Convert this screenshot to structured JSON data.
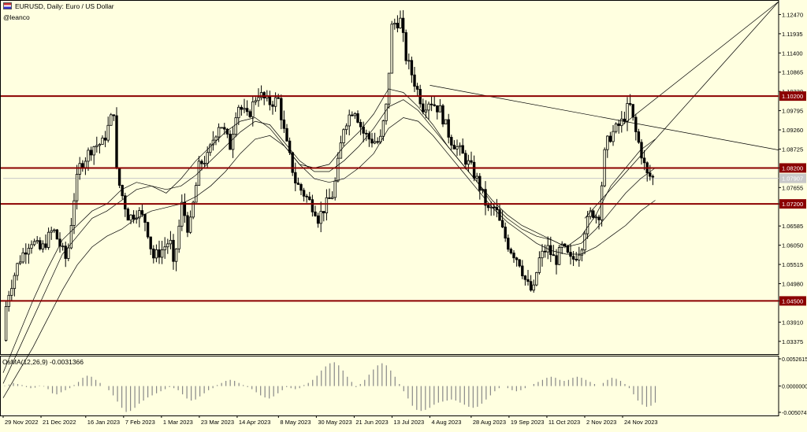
{
  "header": {
    "symbol_line": "EURUSD, Daily:  Euro / US Dollar",
    "author": "@leanco"
  },
  "osma": {
    "label": "OsMA(12,26,9) -0.0031366"
  },
  "colors": {
    "background": "#ffffe0",
    "candle": "#000000",
    "level_line": "#8b0000",
    "level_tag": "#8b0000",
    "ma_line": "#000000",
    "current_price": "#c8c8c8"
  },
  "chart_data": [
    {
      "type": "candlestick",
      "title": "EURUSD, Daily:  Euro / US Dollar",
      "symbol": "EURUSD",
      "timeframe": "Daily",
      "x_ticks": [
        "29 Nov 2022",
        "21 Dec 2022",
        "16 Jan 2023",
        "7 Feb 2023",
        "1 Mar 2023",
        "23 Mar 2023",
        "14 Apr 2023",
        "8 May 2023",
        "30 May 2023",
        "21 Jun 2023",
        "13 Jul 2023",
        "4 Aug 2023",
        "28 Aug 2023",
        "19 Sep 2023",
        "11 Oct 2023",
        "2 Nov 2023",
        "24 Nov 2023"
      ],
      "y_ticks": [
        "1.12470",
        "1.11935",
        "1.11400",
        "1.10865",
        "1.10330",
        "1.09795",
        "1.09260",
        "1.08725",
        "1.08200",
        "1.07655",
        "1.07200",
        "1.06585",
        "1.06050",
        "1.05515",
        "1.04980",
        "1.04500",
        "1.03910",
        "1.03375"
      ],
      "ylim": [
        1.0302,
        1.1283
      ],
      "horizontal_levels": [
        {
          "value": 1.102,
          "label": "1.10200"
        },
        {
          "value": 1.082,
          "label": "1.08200"
        },
        {
          "value": 1.072,
          "label": "1.07200"
        },
        {
          "value": 1.045,
          "label": "1.04500"
        }
      ],
      "current_price": {
        "value": 1.0791,
        "label": "1.07907"
      },
      "price_path": [
        [
          "29 Nov 2022",
          1.034
        ],
        [
          "1 Dec 2022",
          1.0455
        ],
        [
          "8 Dec 2022",
          1.056
        ],
        [
          "15 Dec 2022",
          1.062
        ],
        [
          "21 Dec 2022",
          1.059
        ],
        [
          "28 Dec 2022",
          1.065
        ],
        [
          "5 Jan 2023",
          1.056
        ],
        [
          "9 Jan 2023",
          1.073
        ],
        [
          "12 Jan 2023",
          1.082
        ],
        [
          "16 Jan 2023",
          1.085
        ],
        [
          "20 Jan 2023",
          1.088
        ],
        [
          "26 Jan 2023",
          1.089
        ],
        [
          "2 Feb 2023",
          1.099
        ],
        [
          "3 Feb 2023",
          1.08
        ],
        [
          "7 Feb 2023",
          1.073
        ],
        [
          "10 Feb 2023",
          1.068
        ],
        [
          "15 Feb 2023",
          1.07
        ],
        [
          "20 Feb 2023",
          1.067
        ],
        [
          "24 Feb 2023",
          1.057
        ],
        [
          "1 Mar 2023",
          1.059
        ],
        [
          "6 Mar 2023",
          1.062
        ],
        [
          "8 Mar 2023",
          1.054
        ],
        [
          "13 Mar 2023",
          1.072
        ],
        [
          "17 Mar 2023",
          1.064
        ],
        [
          "23 Mar 2023",
          1.083
        ],
        [
          "28 Mar 2023",
          1.085
        ],
        [
          "31 Mar 2023",
          1.09
        ],
        [
          "4 Apr 2023",
          1.095
        ],
        [
          "10 Apr 2023",
          1.088
        ],
        [
          "14 Apr 2023",
          1.1
        ],
        [
          "20 Apr 2023",
          1.096
        ],
        [
          "26 Apr 2023",
          1.103
        ],
        [
          "2 May 2023",
          1.1
        ],
        [
          "8 May 2023",
          1.101
        ],
        [
          "12 May 2023",
          1.09
        ],
        [
          "18 May 2023",
          1.078
        ],
        [
          "24 May 2023",
          1.074
        ],
        [
          "30 May 2023",
          1.07
        ],
        [
          "31 May 2023",
          1.068
        ],
        [
          "5 Jun 2023",
          1.072
        ],
        [
          "9 Jun 2023",
          1.075
        ],
        [
          "15 Jun 2023",
          1.094
        ],
        [
          "21 Jun 2023",
          1.099
        ],
        [
          "26 Jun 2023",
          1.092
        ],
        [
          "30 Jun 2023",
          1.09
        ],
        [
          "6 Jul 2023",
          1.089
        ],
        [
          "10 Jul 2023",
          1.1
        ],
        [
          "13 Jul 2023",
          1.122
        ],
        [
          "18 Jul 2023",
          1.123
        ],
        [
          "21 Jul 2023",
          1.113
        ],
        [
          "26 Jul 2023",
          1.106
        ],
        [
          "31 Jul 2023",
          1.099
        ],
        [
          "4 Aug 2023",
          1.101
        ],
        [
          "10 Aug 2023",
          1.098
        ],
        [
          "16 Aug 2023",
          1.09
        ],
        [
          "21 Aug 2023",
          1.087
        ],
        [
          "28 Aug 2023",
          1.082
        ],
        [
          "1 Sep 2023",
          1.078
        ],
        [
          "7 Sep 2023",
          1.07
        ],
        [
          "11 Sep 2023",
          1.071
        ],
        [
          "14 Sep 2023",
          1.066
        ],
        [
          "19 Sep 2023",
          1.06
        ],
        [
          "25 Sep 2023",
          1.056
        ],
        [
          "29 Sep 2023",
          1.05
        ],
        [
          "3 Oct 2023",
          1.047
        ],
        [
          "6 Oct 2023",
          1.056
        ],
        [
          "11 Oct 2023",
          1.06
        ],
        [
          "16 Oct 2023",
          1.056
        ],
        [
          "20 Oct 2023",
          1.06
        ],
        [
          "25 Oct 2023",
          1.056
        ],
        [
          "27 Oct 2023",
          1.057
        ],
        [
          "31 Oct 2023",
          1.06
        ],
        [
          "2 Nov 2023",
          1.065
        ],
        [
          "6 Nov 2023",
          1.07
        ],
        [
          "10 Nov 2023",
          1.068
        ],
        [
          "14 Nov 2023",
          1.088
        ],
        [
          "17 Nov 2023",
          1.091
        ],
        [
          "24 Nov 2023",
          1.095
        ],
        [
          "28 Nov 2023",
          1.1
        ],
        [
          "1 Dec 2023",
          1.093
        ],
        [
          "5 Dec 2023",
          1.086
        ],
        [
          "8 Dec 2023",
          1.08
        ],
        [
          "13 Dec 2023",
          1.0791
        ]
      ],
      "moving_averages": [
        {
          "values": [
            1.025,
            1.035,
            1.045,
            1.054,
            1.062,
            1.066,
            1.07,
            1.072,
            1.076,
            1.078,
            1.077,
            1.075,
            1.079,
            1.084,
            1.088,
            1.092,
            1.095,
            1.096,
            1.093,
            1.088,
            1.083,
            1.082,
            1.083,
            1.088,
            1.092,
            1.097,
            1.104,
            1.103,
            1.099,
            1.094,
            1.088,
            1.083,
            1.078,
            1.072,
            1.068,
            1.065,
            1.063,
            1.062,
            1.06,
            1.063,
            1.069,
            1.077,
            1.082,
            1.087,
            1.09
          ]
        },
        {
          "values": [
            1.022,
            1.031,
            1.04,
            1.049,
            1.058,
            1.063,
            1.068,
            1.07,
            1.073,
            1.076,
            1.077,
            1.076,
            1.077,
            1.08,
            1.084,
            1.088,
            1.092,
            1.095,
            1.094,
            1.089,
            1.084,
            1.081,
            1.081,
            1.084,
            1.088,
            1.093,
            1.099,
            1.101,
            1.098,
            1.093,
            1.088,
            1.083,
            1.078,
            1.073,
            1.069,
            1.066,
            1.064,
            1.062,
            1.06,
            1.061,
            1.065,
            1.07,
            1.075,
            1.079,
            1.082
          ]
        },
        {
          "values": [
            1.018,
            1.025,
            1.032,
            1.04,
            1.048,
            1.055,
            1.06,
            1.063,
            1.065,
            1.068,
            1.07,
            1.071,
            1.072,
            1.074,
            1.077,
            1.081,
            1.086,
            1.09,
            1.091,
            1.088,
            1.083,
            1.079,
            1.078,
            1.079,
            1.082,
            1.086,
            1.093,
            1.096,
            1.095,
            1.091,
            1.086,
            1.081,
            1.076,
            1.071,
            1.067,
            1.064,
            1.061,
            1.059,
            1.058,
            1.058,
            1.06,
            1.063,
            1.066,
            1.07,
            1.073
          ]
        }
      ],
      "trendlines": [
        {
          "from": [
            "4 Aug 2023",
            1.105
          ],
          "to": [
            "13 Dec 2023",
            1.087
          ]
        },
        {
          "from": [
            "2 Nov 2023",
            1.068
          ],
          "to": [
            "13 Dec 2023",
            1.1283
          ]
        },
        {
          "from": [
            "24 Nov 2023",
            1.094
          ],
          "to": [
            "13 Dec 2023",
            1.1283
          ]
        }
      ]
    },
    {
      "type": "bar",
      "title": "OsMA(12,26,9) -0.0031366",
      "y_ticks": [
        "0.0052615",
        "0.0000000",
        "-0.0050747"
      ],
      "ylim": [
        -0.0050747,
        0.0052615
      ],
      "histogram": [
        0.0001,
        0.0003,
        0.0006,
        0.0004,
        0.0002,
        -0.0002,
        -0.0004,
        -0.0003,
        0.0001,
        -0.0001,
        -0.0006,
        -0.0014,
        -0.0016,
        -0.0012,
        -0.0008,
        -0.0004,
        0.0002,
        0.0008,
        0.0016,
        0.002,
        0.0018,
        0.0012,
        0.0006,
        0.0,
        -0.0008,
        -0.0018,
        -0.003,
        -0.0042,
        -0.005,
        -0.0048,
        -0.0042,
        -0.0034,
        -0.0028,
        -0.0022,
        -0.0018,
        -0.0014,
        -0.001,
        -0.0006,
        -0.0002,
        -0.0004,
        -0.0008,
        -0.0016,
        -0.0024,
        -0.0028,
        -0.0026,
        -0.002,
        -0.0014,
        -0.0008,
        -0.0004,
        0.0002,
        0.0006,
        0.001,
        0.0012,
        0.001,
        0.0006,
        0.0002,
        -0.0002,
        -0.0006,
        -0.0012,
        -0.0018,
        -0.0022,
        -0.0024,
        -0.002,
        -0.0014,
        -0.0008,
        -0.0002,
        -0.0004,
        -0.0006,
        -0.0004,
        0.0002,
        0.0006,
        0.0012,
        0.002,
        0.003,
        0.0038,
        0.0044,
        0.0046,
        0.004,
        0.003,
        0.0018,
        0.0008,
        -0.0002,
        0.0004,
        0.0012,
        0.0022,
        0.0032,
        0.004,
        0.0044,
        0.004,
        0.003,
        0.0018,
        0.0004,
        -0.001,
        -0.0024,
        -0.0038,
        -0.0046,
        -0.0048,
        -0.0046,
        -0.0042,
        -0.0036,
        -0.0032,
        -0.003,
        -0.0028,
        -0.0026,
        -0.0028,
        -0.0032,
        -0.0036,
        -0.004,
        -0.0042,
        -0.004,
        -0.0034,
        -0.0026,
        -0.0018,
        -0.001,
        -0.0004,
        0.0,
        -0.0004,
        -0.0008,
        -0.001,
        -0.0008,
        -0.0004,
        0.0,
        0.0004,
        0.0008,
        0.0012,
        0.0016,
        0.0018,
        0.0016,
        0.0012,
        0.001,
        0.0012,
        0.0016,
        0.0018,
        0.0016,
        0.0012,
        0.0008,
        0.0004,
        0.0,
        0.0006,
        0.0012,
        0.0016,
        0.0014,
        0.001,
        0.0004,
        -0.0004,
        -0.0016,
        -0.0028,
        -0.0036,
        -0.004,
        -0.0038,
        -0.0032
      ]
    }
  ]
}
